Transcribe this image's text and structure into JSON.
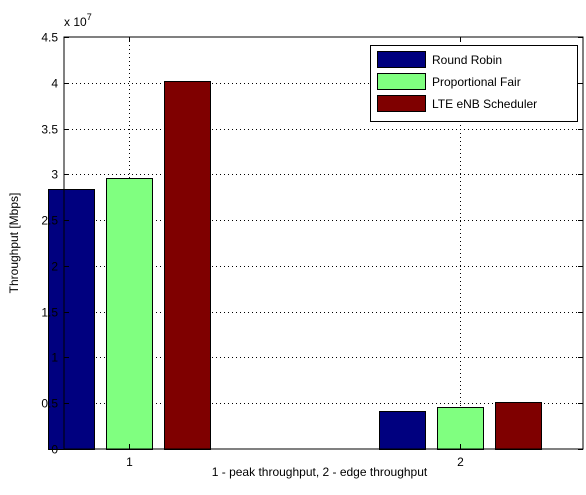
{
  "chart_data": {
    "type": "bar",
    "categories": [
      "1",
      "2"
    ],
    "series": [
      {
        "name": "Round Robin",
        "color": "#00007f",
        "values": [
          28400000,
          4200000
        ]
      },
      {
        "name": "Proportional Fair",
        "color": "#80ff80",
        "values": [
          29600000,
          4600000
        ]
      },
      {
        "name": "LTE eNB Scheduler",
        "color": "#7f0000",
        "values": [
          40200000,
          5100000
        ]
      }
    ],
    "title": "",
    "xlabel": "1 - peak throughput, 2 - edge throughput",
    "ylabel": "Throughput [Mbps]",
    "ylim": [
      0,
      45000000
    ],
    "y_exponent_label": "x 10",
    "y_exponent_power": "7",
    "y_ticks": [
      0,
      5000000,
      10000000,
      15000000,
      20000000,
      25000000,
      30000000,
      35000000,
      40000000,
      45000000
    ],
    "y_tick_labels": [
      "0",
      "0.5",
      "1",
      "1.5",
      "2",
      "2.5",
      "3",
      "3.5",
      "4",
      "4.5"
    ],
    "grid": true,
    "legend_position": "top-right"
  }
}
